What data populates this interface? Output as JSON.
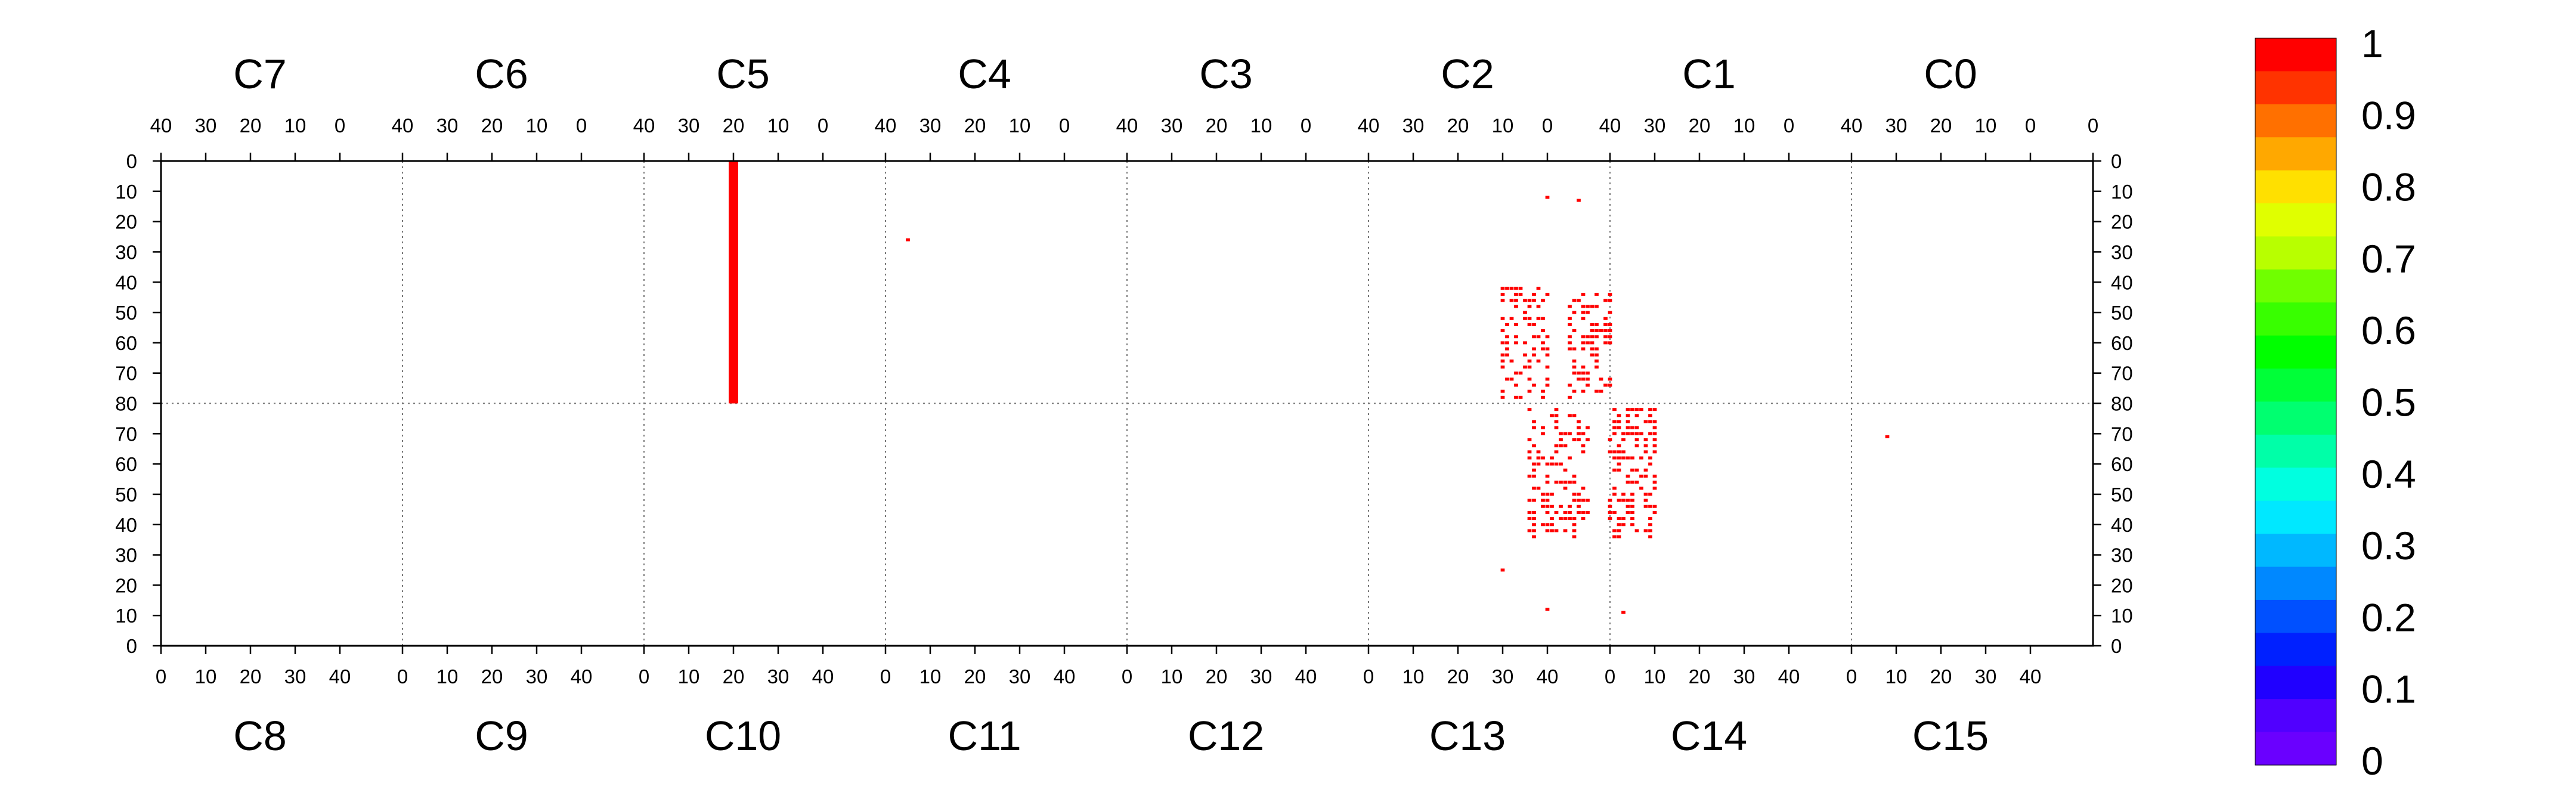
{
  "chart_data": {
    "type": "heatmap",
    "title": "",
    "xlabel": "",
    "ylabel": "",
    "zlim": [
      0,
      1
    ],
    "grid": false,
    "legend": "colorbar at right",
    "chips_top": [
      "C7",
      "C6",
      "C5",
      "C4",
      "C3",
      "C2",
      "C1",
      "C0"
    ],
    "chips_bottom": [
      "C8",
      "C9",
      "C10",
      "C11",
      "C12",
      "C13",
      "C14",
      "C15"
    ],
    "x_ticks_top_per_chip": [
      "40",
      "30",
      "20",
      "10",
      "0"
    ],
    "x_ticks_top_last": [
      "40",
      "30",
      "20",
      "10",
      "0",
      "0"
    ],
    "x_ticks_bottom_per_chip": [
      "0",
      "10",
      "20",
      "30",
      "40"
    ],
    "y_ticks_top_half": [
      "0",
      "10",
      "20",
      "30",
      "40",
      "50",
      "60",
      "70",
      "80"
    ],
    "y_ticks_bottom_half": [
      "70",
      "60",
      "50",
      "40",
      "30",
      "20",
      "10",
      "0"
    ],
    "colorbar": {
      "labels": [
        "1",
        "0.9",
        "0.8",
        "0.7",
        "0.6",
        "0.5",
        "0.4",
        "0.3",
        "0.2",
        "0.1",
        "0"
      ],
      "colors": [
        "#ff0000",
        "#ff3300",
        "#ff7000",
        "#ffa800",
        "#ffe000",
        "#e0ff00",
        "#b8ff00",
        "#70ff00",
        "#38ff00",
        "#00ff00",
        "#00ff38",
        "#00ff70",
        "#00ffa8",
        "#00ffe0",
        "#00e8ff",
        "#00b8ff",
        "#0088ff",
        "#0050ff",
        "#0020ff",
        "#2000ff",
        "#5000ff",
        "#6a00ff"
      ]
    },
    "occupancy": {
      "value": 1,
      "color": "#ff0000",
      "columns": [
        {
          "chip": "C5",
          "col": 20,
          "row_from": 0,
          "row_to": 80
        }
      ],
      "pixels": [
        {
          "chip": "C4",
          "col": 35,
          "row": 26
        },
        {
          "chip": "C2",
          "col": 0,
          "row": 12
        },
        {
          "chip": "C1",
          "col": 47,
          "row": 13
        },
        {
          "chip": "C15",
          "col": 8,
          "row": 69
        },
        {
          "chip": "C13",
          "col": 30,
          "row": 25
        },
        {
          "chip": "C13",
          "col": 40,
          "row": 12
        },
        {
          "chip": "C14",
          "col": 3,
          "row": 11
        }
      ],
      "clusters": [
        {
          "chip": "C2",
          "col_from": 0,
          "col_to": 10,
          "row_from": 42,
          "row_to": 79,
          "density": 0.35
        },
        {
          "chip": "C1",
          "col_from": 40,
          "col_to": 49,
          "row_from": 44,
          "row_to": 79,
          "density": 0.45
        },
        {
          "chip": "C13",
          "col_from": 36,
          "col_to": 49,
          "row_from": 36,
          "row_to": 79,
          "density": 0.35
        },
        {
          "chip": "C14",
          "col_from": 0,
          "col_to": 10,
          "row_from": 36,
          "row_to": 79,
          "density": 0.45
        }
      ]
    }
  }
}
